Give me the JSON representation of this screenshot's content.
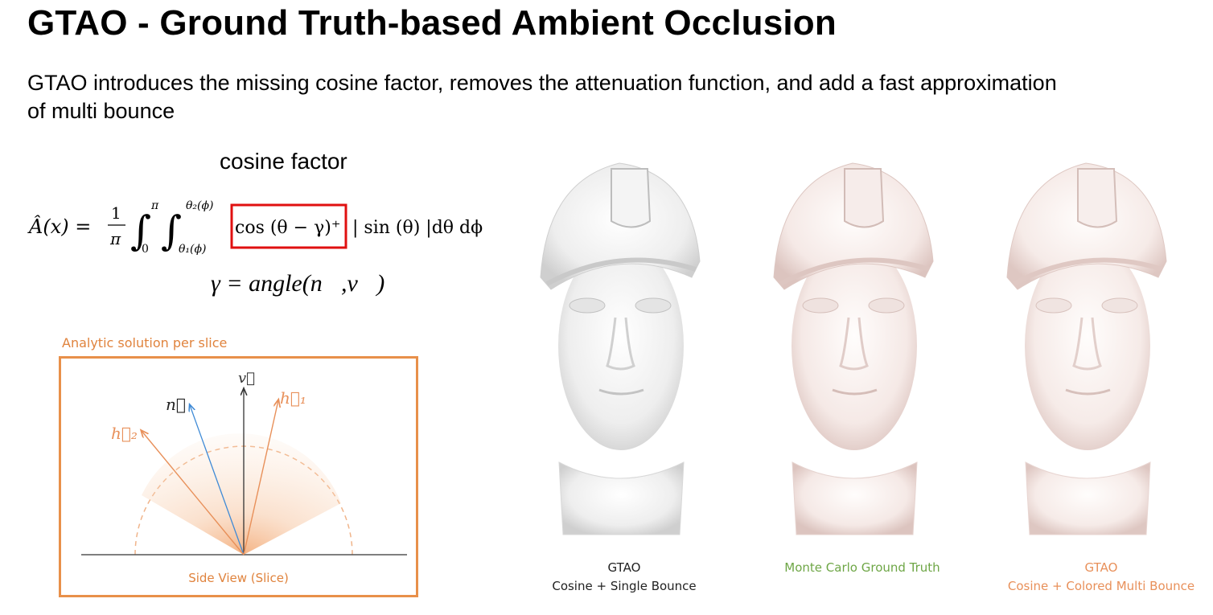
{
  "slide": {
    "title": "GTAO - Ground Truth-based Ambient Occlusion",
    "subtitle": "GTAO introduces the missing cosine factor, removes the attenuation function, and add a fast approximation of multi bounce"
  },
  "equation": {
    "label": "cosine factor",
    "lhs": "Â(x) =",
    "frac_num": "1",
    "frac_den": "π",
    "int1_upper": "π",
    "int1_lower": "0",
    "int2_upper": "θ₂(ϕ)",
    "int2_lower": "θ₁(ϕ)",
    "cosine_term": "cos (θ − γ)⁺",
    "rest": "| sin (θ) |dθ dϕ",
    "gamma_def": "γ = angle(n⃗,v⃗)"
  },
  "slice_diagram": {
    "caption": "Analytic solution per slice",
    "bottom_label": "Side View (Slice)",
    "vector_v": "v⃗",
    "vector_n": "n⃗",
    "vector_h1": "h⃗₁",
    "vector_h2": "h⃗₂"
  },
  "comparison": [
    {
      "line1": "GTAO",
      "line2": "Cosine + Single Bounce",
      "color": "#222222"
    },
    {
      "line1": "Monte Carlo Ground Truth",
      "line2": "",
      "color": "#6ea646"
    },
    {
      "line1": "GTAO",
      "line2": "Cosine + Colored Multi Bounce",
      "color": "#e8905a"
    }
  ]
}
